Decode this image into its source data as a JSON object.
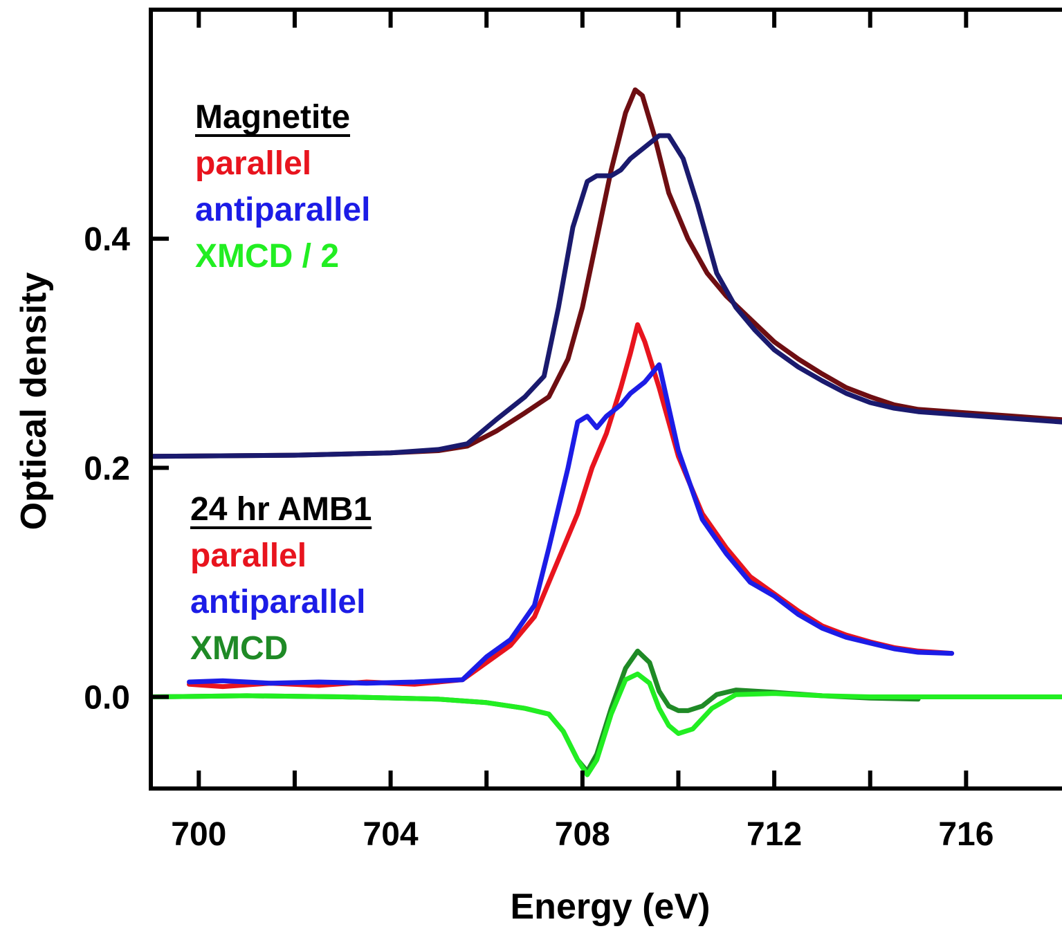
{
  "chart_data": {
    "type": "line",
    "xlabel": "Energy (eV)",
    "ylabel": "Optical density",
    "xlim": [
      699,
      718
    ],
    "ylim": [
      -0.08,
      0.6
    ],
    "x_ticks_major": [
      700,
      704,
      708,
      712,
      716
    ],
    "x_tick_labels": [
      "700",
      "704",
      "708",
      "712",
      "716"
    ],
    "x_ticks_minor": [
      702,
      706,
      710,
      714
    ],
    "y_ticks": [
      0.0,
      0.2,
      0.4
    ],
    "y_tick_labels": [
      "0.0",
      "0.2",
      "0.4"
    ],
    "grid": false,
    "legend_groups": [
      {
        "title": "Magnetite",
        "entries": [
          {
            "label": "parallel",
            "color": "#e8141e"
          },
          {
            "label": "antiparallel",
            "color": "#1c1ce6"
          },
          {
            "label": "XMCD / 2",
            "color": "#22ee22"
          }
        ]
      },
      {
        "title": "24 hr AMB1",
        "entries": [
          {
            "label": "parallel",
            "color": "#e8141e"
          },
          {
            "label": "antiparallel",
            "color": "#1c1ce6"
          },
          {
            "label": "XMCD",
            "color": "#1f8a26"
          }
        ]
      }
    ],
    "series": [
      {
        "group": "Magnetite",
        "label": "parallel",
        "color": "#6e0e12",
        "x": [
          699,
          702,
          704,
          705,
          705.6,
          706.2,
          706.8,
          707.3,
          707.7,
          708.0,
          708.3,
          708.6,
          708.9,
          709.1,
          709.25,
          709.5,
          709.8,
          710.2,
          710.6,
          711.0,
          711.5,
          712,
          712.5,
          713,
          713.5,
          714,
          714.5,
          715,
          716,
          717,
          718
        ],
        "y": [
          0.21,
          0.211,
          0.213,
          0.215,
          0.219,
          0.232,
          0.248,
          0.262,
          0.295,
          0.34,
          0.4,
          0.46,
          0.51,
          0.53,
          0.525,
          0.49,
          0.44,
          0.4,
          0.37,
          0.35,
          0.33,
          0.31,
          0.295,
          0.282,
          0.27,
          0.262,
          0.255,
          0.251,
          0.248,
          0.245,
          0.242
        ]
      },
      {
        "group": "Magnetite",
        "label": "antiparallel",
        "color": "#1a1a6e",
        "x": [
          699,
          702,
          704,
          705,
          705.6,
          706.2,
          706.8,
          707.2,
          707.5,
          707.8,
          708.1,
          708.3,
          708.6,
          708.8,
          709.0,
          709.3,
          709.6,
          709.8,
          710.1,
          710.4,
          710.8,
          711.2,
          711.6,
          712,
          712.5,
          713,
          713.5,
          714,
          714.5,
          715,
          716,
          717,
          718
        ],
        "y": [
          0.21,
          0.211,
          0.213,
          0.216,
          0.221,
          0.242,
          0.262,
          0.28,
          0.34,
          0.41,
          0.45,
          0.455,
          0.455,
          0.46,
          0.47,
          0.48,
          0.49,
          0.49,
          0.47,
          0.43,
          0.37,
          0.34,
          0.32,
          0.303,
          0.288,
          0.276,
          0.265,
          0.257,
          0.252,
          0.249,
          0.246,
          0.243,
          0.24
        ]
      },
      {
        "group": "24 hr AMB1",
        "label": "parallel",
        "color": "#e8141e",
        "x": [
          699.8,
          700.5,
          701.5,
          702.5,
          703.5,
          704.5,
          705.5,
          706.0,
          706.5,
          707.0,
          707.5,
          707.9,
          708.2,
          708.5,
          708.8,
          709.0,
          709.15,
          709.3,
          709.6,
          710.0,
          710.5,
          711.0,
          711.5,
          712.0,
          712.5,
          713.0,
          713.5,
          714.0,
          714.5,
          715.0,
          715.7
        ],
        "y": [
          0.011,
          0.009,
          0.012,
          0.01,
          0.013,
          0.011,
          0.015,
          0.03,
          0.045,
          0.07,
          0.12,
          0.16,
          0.2,
          0.23,
          0.27,
          0.3,
          0.325,
          0.31,
          0.27,
          0.21,
          0.16,
          0.13,
          0.105,
          0.09,
          0.075,
          0.062,
          0.054,
          0.048,
          0.043,
          0.04,
          0.038
        ]
      },
      {
        "group": "24 hr AMB1",
        "label": "antiparallel",
        "color": "#1c1ce6",
        "x": [
          699.8,
          700.5,
          701.5,
          702.5,
          703.5,
          704.5,
          705.5,
          706.0,
          706.5,
          707.0,
          707.3,
          707.7,
          707.9,
          708.1,
          708.3,
          708.5,
          708.8,
          709.0,
          709.3,
          709.6,
          710.0,
          710.5,
          711.0,
          711.5,
          712.0,
          712.5,
          713.0,
          713.5,
          714.0,
          714.5,
          715.0,
          715.7
        ],
        "y": [
          0.013,
          0.014,
          0.012,
          0.013,
          0.012,
          0.013,
          0.015,
          0.035,
          0.05,
          0.08,
          0.13,
          0.2,
          0.24,
          0.245,
          0.235,
          0.245,
          0.255,
          0.265,
          0.275,
          0.29,
          0.215,
          0.155,
          0.125,
          0.1,
          0.088,
          0.072,
          0.06,
          0.052,
          0.047,
          0.042,
          0.039,
          0.038
        ]
      },
      {
        "group": "24 hr AMB1",
        "label": "XMCD",
        "color": "#1f8a26",
        "x": [
          699,
          701,
          703,
          705,
          706,
          706.8,
          707.3,
          707.6,
          707.9,
          708.1,
          708.3,
          708.6,
          708.9,
          709.15,
          709.4,
          709.6,
          709.8,
          710.0,
          710.2,
          710.5,
          710.8,
          711.2,
          712,
          713,
          714,
          715
        ],
        "y": [
          0.0,
          0.001,
          0.0,
          -0.002,
          -0.005,
          -0.01,
          -0.015,
          -0.03,
          -0.055,
          -0.065,
          -0.05,
          -0.01,
          0.025,
          0.04,
          0.03,
          0.005,
          -0.008,
          -0.012,
          -0.012,
          -0.008,
          0.002,
          0.006,
          0.004,
          0.001,
          -0.001,
          -0.002
        ]
      },
      {
        "group": "Magnetite",
        "label": "XMCD / 2",
        "color": "#22ee22",
        "x": [
          699,
          701,
          703,
          705,
          706,
          706.8,
          707.3,
          707.6,
          707.9,
          708.1,
          708.3,
          708.6,
          708.9,
          709.15,
          709.4,
          709.6,
          709.8,
          710.0,
          710.3,
          710.7,
          711.2,
          712,
          713,
          714,
          716,
          718
        ],
        "y": [
          0.0,
          0.001,
          0.0,
          -0.002,
          -0.005,
          -0.01,
          -0.015,
          -0.03,
          -0.055,
          -0.068,
          -0.055,
          -0.015,
          0.015,
          0.02,
          0.012,
          -0.01,
          -0.025,
          -0.032,
          -0.028,
          -0.01,
          0.002,
          0.003,
          0.001,
          0.0,
          0.0,
          0.0
        ]
      }
    ]
  }
}
